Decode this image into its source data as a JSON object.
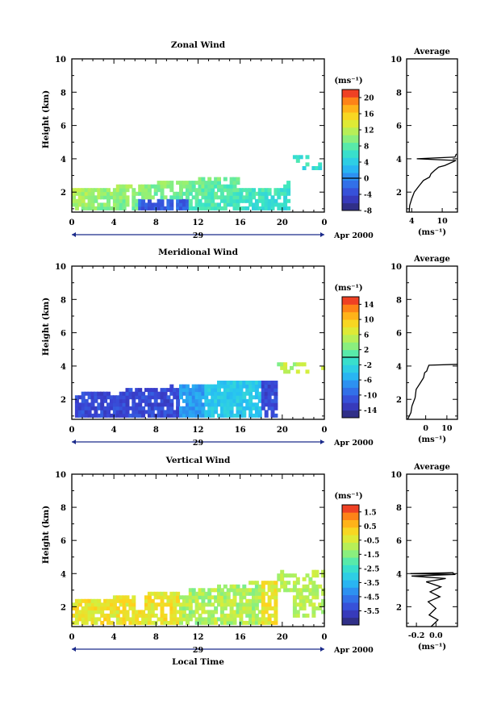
{
  "chart_data": [
    {
      "type": "heatmap",
      "title": "Zonal Wind",
      "xlabel": "",
      "ylabel": "Height (km)",
      "xlim": [
        0,
        24
      ],
      "ylim": [
        0.8,
        10
      ],
      "xticks": [
        "0",
        "4",
        "8",
        "12",
        "16",
        "20",
        "0"
      ],
      "yticks": [
        "2",
        "4",
        "6",
        "8",
        "10"
      ],
      "date_label": "29",
      "date_right": "Apr 2000",
      "colorbar": {
        "unit": "(ms⁻¹)",
        "min": -8,
        "max": 22,
        "ticks": [
          "20",
          "16",
          "12",
          "8",
          "4",
          "0",
          "-4",
          "-8"
        ],
        "tick_values": [
          20,
          16,
          12,
          8,
          4,
          0,
          -4,
          -8
        ],
        "zero_line": 0
      },
      "average": {
        "title": "Average",
        "xlim": [
          3,
          13
        ],
        "xticks": [
          "4",
          "10"
        ],
        "xtick_values": [
          4,
          10
        ],
        "xlabel": "(ms⁻¹)",
        "yticks": [
          "2",
          "4",
          "6",
          "8",
          "10"
        ]
      }
    },
    {
      "type": "heatmap",
      "title": "Meridional Wind",
      "xlabel": "",
      "ylabel": "Height (km)",
      "xlim": [
        0,
        24
      ],
      "ylim": [
        0.8,
        10
      ],
      "xticks": [
        "0",
        "4",
        "8",
        "12",
        "16",
        "20",
        "0"
      ],
      "yticks": [
        "2",
        "4",
        "6",
        "8",
        "10"
      ],
      "date_label": "29",
      "date_right": "Apr 2000",
      "colorbar": {
        "unit": "(ms⁻¹)",
        "min": -16,
        "max": 16,
        "ticks": [
          "14",
          "10",
          "6",
          "2",
          "-2",
          "-6",
          "-10",
          "-14"
        ],
        "tick_values": [
          14,
          10,
          6,
          2,
          -2,
          -6,
          -10,
          -14
        ],
        "zero_line": 0
      },
      "average": {
        "title": "Average",
        "xlim": [
          -9,
          15
        ],
        "xticks": [
          "0",
          "10"
        ],
        "xtick_values": [
          0,
          10
        ],
        "xlabel": "(ms⁻¹)",
        "yticks": [
          "2",
          "4",
          "6",
          "8",
          "10"
        ]
      }
    },
    {
      "type": "heatmap",
      "title": "Vertical Wind",
      "xlabel": "Local Time",
      "ylabel": "Height (km)",
      "xlim": [
        0,
        24
      ],
      "ylim": [
        0.8,
        10
      ],
      "xticks": [
        "0",
        "4",
        "8",
        "12",
        "16",
        "20",
        "0"
      ],
      "yticks": [
        "2",
        "4",
        "6",
        "8",
        "10"
      ],
      "date_label": "29",
      "date_right": "Apr 2000",
      "colorbar": {
        "unit": "(ms⁻¹)",
        "min": -6.5,
        "max": 2.0,
        "ticks": [
          "1.5",
          "0.5",
          "-0.5",
          "-1.5",
          "-2.5",
          "-3.5",
          "-4.5",
          "-5.5"
        ],
        "tick_values": [
          1.5,
          0.5,
          -0.5,
          -1.5,
          -2.5,
          -3.5,
          -4.5,
          -5.5
        ]
      },
      "average": {
        "title": "Average",
        "xlim": [
          -0.3,
          0.22
        ],
        "xticks": [
          "-0.2",
          "0.0"
        ],
        "xtick_values": [
          -0.2,
          0.0
        ],
        "xlabel": "(ms⁻¹)",
        "yticks": [
          "2",
          "4",
          "6",
          "8",
          "10"
        ]
      }
    }
  ]
}
